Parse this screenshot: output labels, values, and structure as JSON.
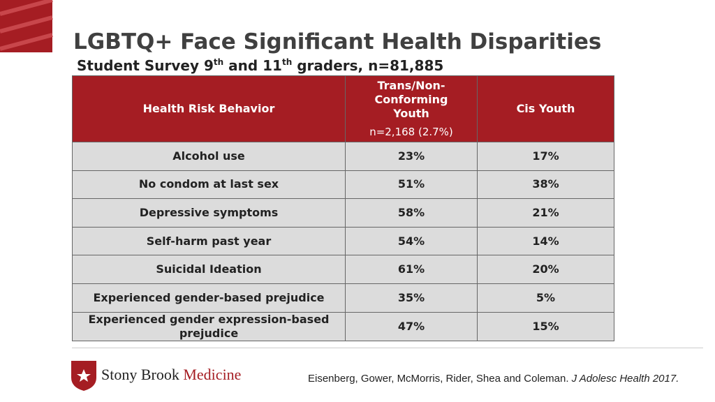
{
  "header": {
    "title": "LGBTQ+ Face Significant Health Disparities",
    "subtitle": [
      "Student Survey 9",
      "th",
      " and 11",
      "th",
      " graders, n=81,885"
    ]
  },
  "table": {
    "columns": [
      "Health Risk Behavior",
      "Trans/Non-Conforming Youth",
      "Cis Youth"
    ],
    "column_note": "n=2,168 (2.7%)",
    "rows": [
      [
        "Alcohol use",
        "23%",
        "17%"
      ],
      [
        "No condom at last sex",
        "51%",
        "38%"
      ],
      [
        "Depressive symptoms",
        "58%",
        "21%"
      ],
      [
        "Self-harm past year",
        "54%",
        "14%"
      ],
      [
        "Suicidal Ideation",
        "61%",
        "20%"
      ],
      [
        "Experienced gender-based prejudice",
        "35%",
        "5%"
      ],
      [
        "Experienced gender expression-based prejudice",
        "47%",
        "15%"
      ]
    ]
  },
  "footer": {
    "logo": [
      "Stony Brook ",
      "Medicine"
    ],
    "citation": "Eisenberg, Gower, McMorris, Rider, Shea and Coleman. ",
    "journal": "J Adolesc Health 2017."
  }
}
